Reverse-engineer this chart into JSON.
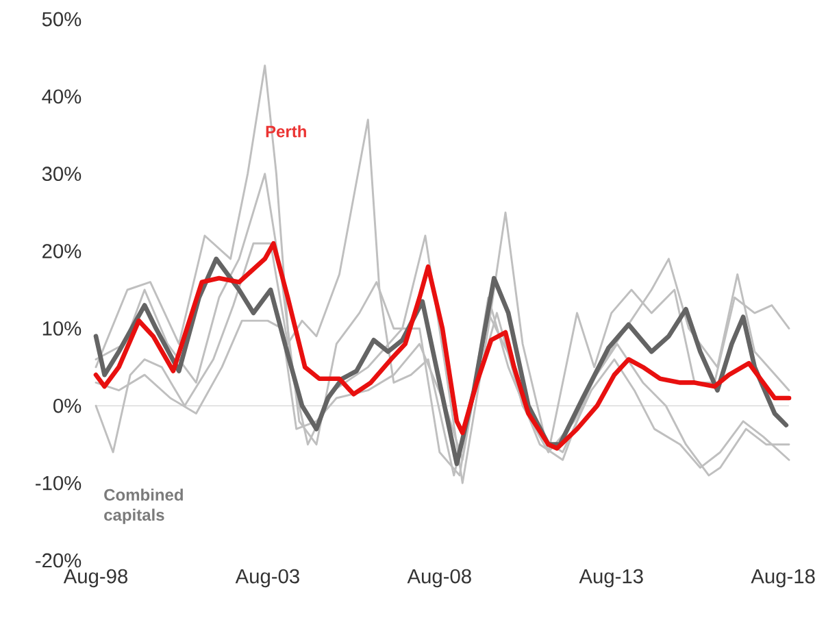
{
  "chart_data": {
    "type": "line",
    "marker": "none",
    "line_style": "solid",
    "xlim": [
      "1998-08",
      "2018-10"
    ],
    "ylim": [
      -20,
      50
    ],
    "xticks": [
      {
        "value": "1998-08",
        "label": "Aug-98"
      },
      {
        "value": "2003-08",
        "label": "Aug-03"
      },
      {
        "value": "2008-08",
        "label": "Aug-08"
      },
      {
        "value": "2013-08",
        "label": "Aug-13"
      },
      {
        "value": "2018-08",
        "label": "Aug-18"
      }
    ],
    "yticks": [
      {
        "value": -20,
        "label": "-20%"
      },
      {
        "value": -10,
        "label": "-10%"
      },
      {
        "value": 0,
        "label": "0%"
      },
      {
        "value": 10,
        "label": "10%"
      },
      {
        "value": 20,
        "label": "20%"
      },
      {
        "value": 30,
        "label": "30%"
      },
      {
        "value": 40,
        "label": "40%"
      },
      {
        "value": 50,
        "label": "50%"
      }
    ],
    "ref_lines": [
      {
        "axis": "y",
        "value": 0,
        "color": "#c8c8c8"
      }
    ],
    "series": [
      {
        "color": "#bfbfbf",
        "x": [
          "1998-08",
          "1999-07",
          "2000-03",
          "2001-01",
          "2001-10",
          "2002-07",
          "2003-01",
          "2003-07",
          "2003-11",
          "2004-04",
          "2004-10",
          "2005-07",
          "2006-07",
          "2007-07",
          "2008-03",
          "2008-10",
          "2009-04",
          "2010-01",
          "2010-07",
          "2011-01",
          "2011-10",
          "2012-07",
          "2013-04",
          "2014-01",
          "2014-10",
          "2015-04",
          "2015-11",
          "2016-09",
          "2017-04",
          "2017-10",
          "2018-10"
        ],
        "values": [
          5,
          15,
          16,
          8,
          22,
          19,
          30,
          44,
          30,
          5,
          -5,
          2,
          5,
          10,
          22,
          5,
          -10,
          10,
          25,
          8,
          -6,
          -2,
          5,
          10,
          15,
          19,
          10,
          5,
          17,
          7,
          2
        ]
      },
      {
        "color": "#bfbfbf",
        "x": [
          "1998-08",
          "1999-02",
          "1999-08",
          "2000-01",
          "2000-07",
          "2001-03",
          "2002-01",
          "2002-08",
          "2003-03",
          "2003-09",
          "2004-03",
          "2004-08",
          "2005-01",
          "2005-09",
          "2006-07",
          "2006-11",
          "2007-04",
          "2007-10",
          "2008-04",
          "2009-01",
          "2009-07",
          "2010-04",
          "2011-01",
          "2011-10",
          "2012-08",
          "2013-02",
          "2013-08",
          "2014-03",
          "2014-10",
          "2015-06",
          "2016-01",
          "2016-08",
          "2017-03",
          "2017-10",
          "2018-04",
          "2018-10"
        ],
        "values": [
          0,
          -6,
          4,
          6,
          5,
          0,
          6,
          13,
          21,
          21,
          8,
          11,
          9,
          17,
          37,
          15,
          3,
          4,
          6,
          -9,
          0,
          12,
          0,
          -6,
          12,
          5,
          12,
          15,
          12,
          15,
          3,
          3,
          14,
          12,
          13,
          10
        ]
      },
      {
        "color": "#bfbfbf",
        "x": [
          "1998-08",
          "1999-06",
          "2000-01",
          "2000-09",
          "2001-07",
          "2002-03",
          "2002-10",
          "2003-07",
          "2004-01",
          "2004-07",
          "2005-01",
          "2005-08",
          "2006-04",
          "2006-10",
          "2007-04",
          "2008-01",
          "2008-08",
          "2009-03",
          "2010-01",
          "2010-08",
          "2011-07",
          "2012-03",
          "2013-01",
          "2013-10",
          "2014-07",
          "2015-03",
          "2015-10",
          "2016-06",
          "2016-10",
          "2017-07",
          "2018-02",
          "2018-10"
        ],
        "values": [
          6,
          8,
          15,
          8,
          3,
          14,
          19,
          30,
          16,
          -2,
          -5,
          8,
          12,
          16,
          10,
          10,
          -6,
          -9,
          14,
          5,
          -5,
          -7,
          3,
          8,
          3,
          0,
          -5,
          -9,
          -8,
          -3,
          -5,
          -5
        ]
      },
      {
        "color": "#bfbfbf",
        "x": [
          "1998-08",
          "1999-04",
          "2000-01",
          "2000-10",
          "2001-07",
          "2002-04",
          "2002-11",
          "2003-08",
          "2004-01",
          "2004-06",
          "2005-01",
          "2005-08",
          "2006-07",
          "2007-04",
          "2008-01",
          "2008-10",
          "2009-04",
          "2010-01",
          "2010-09",
          "2011-07",
          "2012-03",
          "2013-01",
          "2013-09",
          "2014-04",
          "2014-11",
          "2015-08",
          "2016-03",
          "2016-10",
          "2017-06",
          "2018-01",
          "2018-10"
        ],
        "values": [
          3,
          2,
          4,
          1,
          -1,
          5,
          11,
          11,
          10,
          -3,
          -2,
          1,
          2,
          4,
          8,
          0,
          -7,
          12,
          6,
          -4,
          -6,
          2,
          6,
          2,
          -3,
          -5,
          -8,
          -6,
          -2,
          -4,
          -7
        ]
      },
      {
        "name": "Combined capitals",
        "color": "#646464",
        "x": [
          "1998-08",
          "1998-11",
          "1999-04",
          "2000-01",
          "2000-05",
          "2001-01",
          "2001-08",
          "2002-02",
          "2002-10",
          "2003-03",
          "2003-07",
          "2003-09",
          "2004-02",
          "2004-08",
          "2005-01",
          "2005-05",
          "2005-10",
          "2006-03",
          "2006-09",
          "2007-02",
          "2007-07",
          "2008-02",
          "2008-08",
          "2009-02",
          "2009-08",
          "2010-03",
          "2010-08",
          "2011-03",
          "2011-10",
          "2012-02",
          "2012-10",
          "2013-07",
          "2014-02",
          "2014-10",
          "2015-04",
          "2015-10",
          "2016-03",
          "2016-09",
          "2017-02",
          "2017-06",
          "2017-10",
          "2018-05",
          "2018-09"
        ],
        "values": [
          9,
          4,
          7,
          13,
          10,
          4.5,
          14,
          19,
          15,
          12,
          14,
          15,
          8,
          0,
          -3,
          1,
          3.5,
          4.5,
          8.5,
          7,
          8.5,
          13.5,
          3,
          -7.5,
          2,
          16.5,
          12,
          0,
          -5,
          -5,
          1,
          7.5,
          10.5,
          7,
          9,
          12.5,
          7,
          2,
          8,
          11.5,
          5,
          -1,
          -2.5
        ]
      },
      {
        "name": "Perth",
        "color": "#e8100f",
        "x": [
          "1998-08",
          "1998-11",
          "1999-04",
          "1999-11",
          "2000-04",
          "2000-11",
          "2001-09",
          "2002-03",
          "2002-10",
          "2003-07",
          "2003-10",
          "2004-03",
          "2004-09",
          "2005-02",
          "2005-09",
          "2006-02",
          "2006-08",
          "2007-03",
          "2007-08",
          "2008-01",
          "2008-04",
          "2008-09",
          "2009-02",
          "2009-04",
          "2009-09",
          "2010-02",
          "2010-07",
          "2010-10",
          "2011-03",
          "2011-10",
          "2012-01",
          "2012-08",
          "2013-03",
          "2013-09",
          "2014-02",
          "2014-07",
          "2015-01",
          "2015-08",
          "2016-01",
          "2016-08",
          "2017-01",
          "2017-08",
          "2018-01",
          "2018-05",
          "2018-10"
        ],
        "values": [
          4,
          2.5,
          5,
          11,
          9,
          4.5,
          16,
          16.5,
          16,
          19,
          21,
          14,
          5,
          3.5,
          3.5,
          1.5,
          3,
          6,
          8,
          14,
          18,
          10,
          -2,
          -3.5,
          3,
          8.5,
          9.5,
          5,
          -1,
          -5,
          -5.5,
          -3,
          0,
          4,
          6,
          5,
          3.5,
          3,
          3,
          2.5,
          4,
          5.5,
          3,
          1,
          1
        ]
      }
    ]
  }
}
